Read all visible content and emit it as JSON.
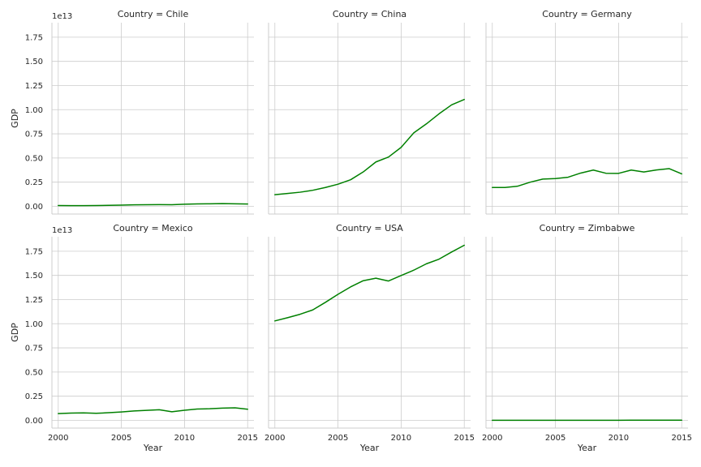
{
  "chart_data": {
    "type": "line",
    "layout": "facet-grid 2x3",
    "shared_axes": true,
    "line_color": "#008000",
    "grid": true,
    "xlabel": "Year",
    "ylabel": "GDP",
    "yoffset_label": "1e13",
    "xlim": [
      1999.5,
      2015.5
    ],
    "ylim": [
      -0.08,
      1.9
    ],
    "xticks": [
      2000,
      2005,
      2010,
      2015
    ],
    "yticks": [
      0,
      0.25,
      0.5,
      0.75,
      1.0,
      1.25,
      1.5,
      1.75
    ],
    "ytick_labels": [
      "0.00",
      "0.25",
      "0.50",
      "0.75",
      "1.00",
      "1.25",
      "1.50",
      "1.75"
    ],
    "x": [
      2000,
      2001,
      2002,
      2003,
      2004,
      2005,
      2006,
      2007,
      2008,
      2009,
      2010,
      2011,
      2012,
      2013,
      2014,
      2015
    ],
    "panels": [
      {
        "title": "Country = Chile",
        "values": [
          0.008,
          0.007,
          0.007,
          0.008,
          0.01,
          0.012,
          0.015,
          0.017,
          0.018,
          0.017,
          0.022,
          0.025,
          0.026,
          0.028,
          0.026,
          0.024
        ]
      },
      {
        "title": "Country = China",
        "values": [
          0.12,
          0.133,
          0.146,
          0.166,
          0.195,
          0.229,
          0.275,
          0.356,
          0.459,
          0.51,
          0.61,
          0.76,
          0.853,
          0.957,
          1.05,
          1.106
        ]
      },
      {
        "title": "Country = Germany",
        "values": [
          0.195,
          0.195,
          0.208,
          0.25,
          0.282,
          0.287,
          0.301,
          0.344,
          0.375,
          0.342,
          0.341,
          0.375,
          0.355,
          0.376,
          0.39,
          0.336
        ]
      },
      {
        "title": "Country = Mexico",
        "values": [
          0.07,
          0.075,
          0.077,
          0.073,
          0.079,
          0.087,
          0.097,
          0.104,
          0.11,
          0.089,
          0.105,
          0.117,
          0.12,
          0.127,
          0.13,
          0.115
        ]
      },
      {
        "title": "Country = USA",
        "values": [
          1.029,
          1.062,
          1.098,
          1.143,
          1.221,
          1.304,
          1.381,
          1.445,
          1.471,
          1.442,
          1.499,
          1.554,
          1.62,
          1.668,
          1.742,
          1.812
        ]
      },
      {
        "title": "Country = Zimbabwe",
        "values": [
          0.0007,
          0.0007,
          0.0006,
          0.0006,
          0.0006,
          0.0006,
          0.0005,
          0.0005,
          0.0004,
          0.0009,
          0.001,
          0.0014,
          0.0017,
          0.0019,
          0.002,
          0.002
        ]
      }
    ]
  }
}
